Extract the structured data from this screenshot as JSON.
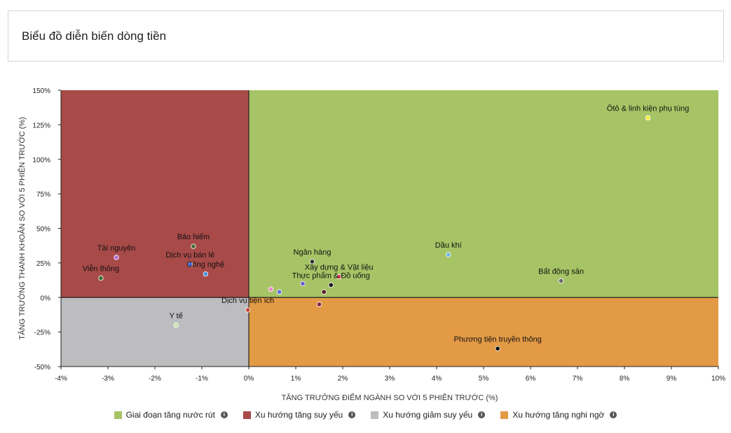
{
  "header": {
    "title": "Biểu đồ diễn biến dòng tiền"
  },
  "chart_data": {
    "type": "scatter",
    "xlabel": "TĂNG TRƯỞNG ĐIỂM NGÀNH SO VỚI 5 PHIÊN TRƯỚC (%)",
    "ylabel": "TĂNG TRƯỞNG THANH KHOẢN SO VỚI 5 PHIÊN TRƯỚC (%)",
    "xlim": [
      -4,
      10
    ],
    "ylim": [
      -50,
      150
    ],
    "x_ticks": [
      -4,
      -3,
      -2,
      -1,
      0,
      1,
      2,
      3,
      4,
      5,
      6,
      7,
      8,
      9,
      10
    ],
    "x_tick_labels": [
      "-4%",
      "-3%",
      "-2%",
      "-1%",
      "0%",
      "1%",
      "2%",
      "3%",
      "4%",
      "5%",
      "6%",
      "7%",
      "8%",
      "9%",
      "10%"
    ],
    "y_ticks": [
      150,
      125,
      100,
      75,
      50,
      25,
      0,
      -25,
      -50
    ],
    "y_tick_labels": [
      "150%",
      "125%",
      "100%",
      "75%",
      "50%",
      "25%",
      "0%",
      "-25%",
      "-50%"
    ],
    "grid": false,
    "quadrants": [
      {
        "name": "Giai đoạn tăng nước rút",
        "color": "#a6c465",
        "x_range": [
          0,
          10
        ],
        "y_range": [
          0,
          150
        ]
      },
      {
        "name": "Xu hướng tăng suy yếu",
        "color": "#a84a48",
        "x_range": [
          -4,
          0
        ],
        "y_range": [
          0,
          150
        ]
      },
      {
        "name": "Xu hướng giảm suy yếu",
        "color": "#bdbdc0",
        "x_range": [
          -4,
          0
        ],
        "y_range": [
          -50,
          0
        ]
      },
      {
        "name": "Xu hướng tăng nghi ngờ",
        "color": "#e39a45",
        "x_range": [
          0,
          10
        ],
        "y_range": [
          -50,
          0
        ]
      }
    ],
    "points": [
      {
        "label": "Ôtô & linh kiện phụ tùng",
        "x": 8.5,
        "y": 130,
        "color": "#f5ea3a"
      },
      {
        "label": "Dầu khí",
        "x": 4.25,
        "y": 31,
        "color": "#6fb8e8"
      },
      {
        "label": "Bất động sản",
        "x": 6.65,
        "y": 12,
        "color": "#6a6a6a"
      },
      {
        "label": "Phương tiện truyền thông",
        "x": 5.3,
        "y": -37,
        "color": "#111111"
      },
      {
        "label": "Ngân hàng",
        "x": 1.35,
        "y": 26,
        "color": "#333333"
      },
      {
        "label": "Xây dựng & Vật liệu",
        "x": 1.92,
        "y": 15,
        "color": "#d23c4a"
      },
      {
        "label": "Thực phẩm & Đồ uống",
        "x": 1.75,
        "y": 9,
        "color": "#1a1a1a"
      },
      {
        "label": "Dịch vụ tiện ích",
        "x": -0.02,
        "y": -9,
        "color": "#c44d3a"
      },
      {
        "label": "Y tế",
        "x": -1.55,
        "y": -20,
        "color": "#c7e6a0"
      },
      {
        "label": "Tài nguyên",
        "x": -2.82,
        "y": 29,
        "color": "#b06ed8"
      },
      {
        "label": "Viễn thông",
        "x": -3.15,
        "y": 14,
        "color": "#3a6e33"
      },
      {
        "label": "Bảo hiểm",
        "x": -1.18,
        "y": 37,
        "color": "#4b6b3a"
      },
      {
        "label": "Dịch vụ bán lẻ",
        "x": -1.25,
        "y": 24,
        "color": "#4a6ad8"
      },
      {
        "label": "Công nghệ",
        "x": -0.92,
        "y": 17,
        "color": "#4a8ed8"
      },
      {
        "label": "",
        "x": 0.47,
        "y": 6,
        "color": "#e88ac0"
      },
      {
        "label": "",
        "x": 0.65,
        "y": 4,
        "color": "#5a70d8"
      },
      {
        "label": "",
        "x": 1.15,
        "y": 10,
        "color": "#6a5ad0"
      },
      {
        "label": "",
        "x": 1.6,
        "y": 4,
        "color": "#5a1a2a"
      },
      {
        "label": "",
        "x": 1.5,
        "y": -5,
        "color": "#8a2040"
      }
    ]
  },
  "legend": {
    "items": [
      {
        "label": "Giai đoạn tăng nước rút",
        "color": "#a6c465"
      },
      {
        "label": "Xu hướng tăng suy yếu",
        "color": "#a84a48"
      },
      {
        "label": "Xu hướng giảm suy yếu",
        "color": "#bdbdc0"
      },
      {
        "label": "Xu hướng tăng nghi ngờ",
        "color": "#e39a45"
      }
    ],
    "info_icon": "info-icon"
  }
}
